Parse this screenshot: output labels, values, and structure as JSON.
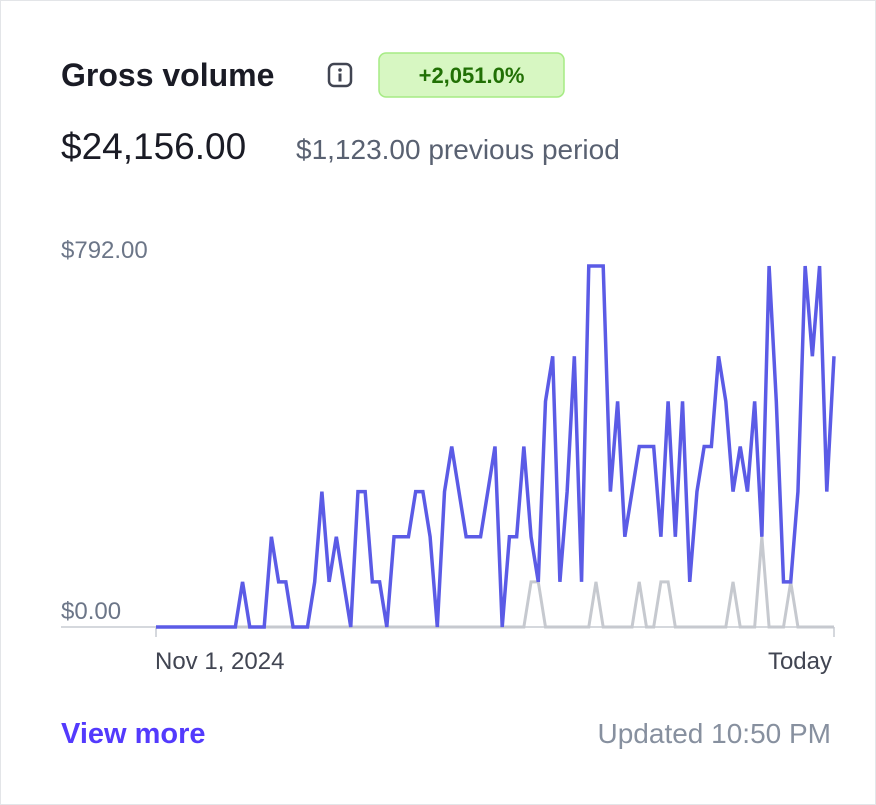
{
  "header": {
    "title": "Gross volume",
    "change": "+2,051.0%"
  },
  "summary": {
    "amount": "$24,156.00",
    "previous": "$1,123.00 previous period"
  },
  "chart_data": {
    "type": "line",
    "categories": [
      "Nov 1, 2024",
      null,
      null,
      null,
      null,
      null,
      null,
      null,
      null,
      null,
      null,
      null,
      null,
      null,
      null,
      null,
      null,
      null,
      null,
      null,
      null,
      null,
      null,
      null,
      null,
      null,
      null,
      null,
      null,
      null,
      null,
      null,
      null,
      null,
      null,
      null,
      null,
      null,
      null,
      null,
      null,
      null,
      null,
      null,
      null,
      null,
      null,
      null,
      null,
      null,
      null,
      null,
      null,
      null,
      null,
      null,
      null,
      null,
      null,
      null,
      null,
      null,
      null,
      null,
      null,
      null,
      null,
      null,
      null,
      null,
      null,
      null,
      null,
      null,
      null,
      null,
      null,
      null,
      null,
      null,
      null,
      null,
      null,
      null,
      null,
      null,
      null,
      null,
      null,
      null,
      null,
      null,
      null,
      null,
      "Today"
    ],
    "series": [
      {
        "color": "#c6c9cf",
        "values": [
          0,
          0,
          0,
          0,
          0,
          0,
          0,
          0,
          0,
          0,
          0,
          0,
          0,
          0,
          0,
          0,
          0,
          0,
          0,
          0,
          0,
          0,
          0,
          0,
          0,
          0,
          0,
          0,
          0,
          0,
          0,
          0,
          0,
          0,
          0,
          0,
          0,
          0,
          0,
          0,
          0,
          0,
          0,
          0,
          0,
          0,
          0,
          0,
          0,
          0,
          0,
          0,
          99,
          99,
          0,
          0,
          0,
          0,
          0,
          0,
          0,
          99,
          0,
          0,
          0,
          0,
          0,
          99,
          0,
          0,
          99,
          99,
          0,
          0,
          0,
          0,
          0,
          0,
          0,
          0,
          99,
          0,
          0,
          0,
          198,
          0,
          0,
          0,
          99,
          0,
          0,
          0,
          0,
          0,
          0
        ]
      },
      {
        "color": "#5b5be6",
        "values": [
          0,
          0,
          0,
          0,
          0,
          0,
          0,
          0,
          0,
          0,
          0,
          0,
          99,
          0,
          0,
          0,
          198,
          99,
          99,
          0,
          0,
          0,
          99,
          297,
          99,
          198,
          99,
          0,
          297,
          297,
          99,
          99,
          0,
          198,
          198,
          198,
          297,
          297,
          198,
          0,
          297,
          396,
          297,
          198,
          198,
          198,
          297,
          396,
          0,
          198,
          198,
          396,
          198,
          99,
          495,
          594,
          99,
          297,
          594,
          99,
          792,
          792,
          792,
          297,
          495,
          198,
          297,
          396,
          396,
          396,
          198,
          495,
          198,
          495,
          99,
          297,
          396,
          396,
          594,
          495,
          297,
          396,
          297,
          495,
          198,
          792,
          495,
          99,
          99,
          297,
          792,
          594,
          792,
          297,
          594
        ]
      }
    ],
    "ylim": [
      0,
      792
    ],
    "yticks": [
      {
        "value": 792,
        "label": "$792.00"
      },
      {
        "value": 0,
        "label": "$0.00"
      }
    ]
  },
  "footer": {
    "link": "View more",
    "updated": "Updated 10:50 PM"
  }
}
